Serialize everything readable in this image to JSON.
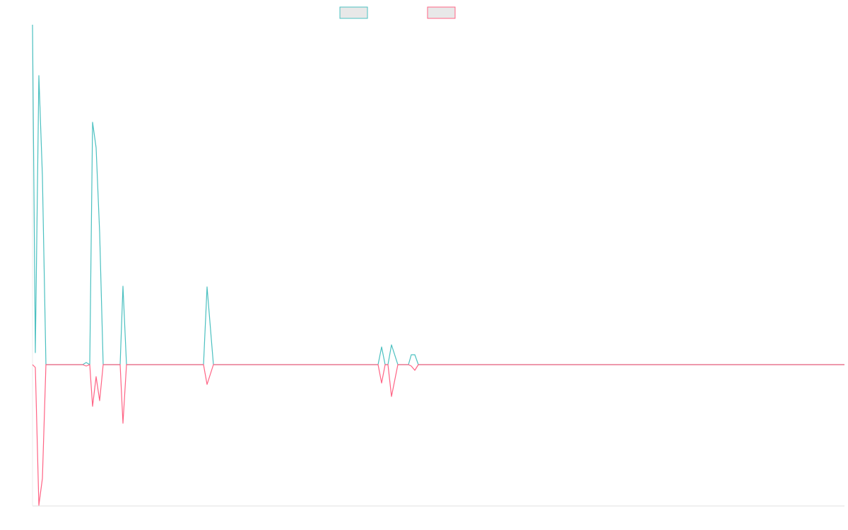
{
  "chart_data": {
    "type": "line",
    "x": [
      0,
      4,
      9,
      14,
      19,
      71,
      76,
      81,
      85,
      90,
      95,
      100,
      124,
      128,
      133,
      242,
      247,
      256,
      489,
      494,
      499,
      503,
      508,
      517,
      532,
      536,
      541,
      546,
      1149
    ],
    "xlim": [
      0,
      1149
    ],
    "ylim": [
      -200,
      480
    ],
    "series": [
      {
        "color": "#4bc0c0",
        "values": [
          481,
          17,
          409,
          267,
          0,
          0,
          3,
          0,
          343,
          307,
          187,
          0,
          0,
          111,
          0,
          0,
          110,
          0,
          0,
          25,
          0,
          0,
          28,
          0,
          0,
          14,
          14,
          0,
          0
        ]
      },
      {
        "color": "#ff6384",
        "values": [
          0,
          -4,
          -199,
          -161,
          0,
          0,
          -2,
          0,
          -59,
          -17,
          -51,
          0,
          0,
          -83,
          0,
          0,
          -28,
          0,
          0,
          -26,
          0,
          0,
          -45,
          0,
          0,
          -2,
          -8,
          0,
          0
        ]
      }
    ]
  }
}
